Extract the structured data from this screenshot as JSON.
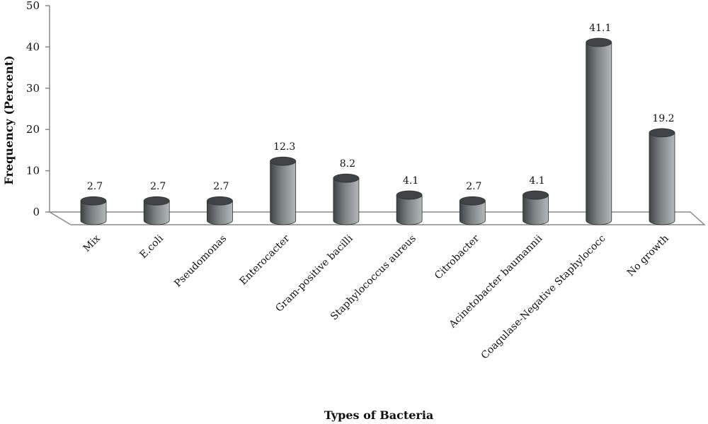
{
  "chart_data": {
    "type": "bar",
    "xlabel": "Types of Bacteria",
    "ylabel": "Frequency (Percent)",
    "ylim": [
      0,
      50
    ],
    "yticks": [
      "0",
      "10",
      "20",
      "30",
      "40",
      "50"
    ],
    "categories": [
      "Mix",
      "E.coli",
      "Pseudomonas",
      "Enterocacter",
      "Gram-positive bacilli",
      "Staphylococcus aureus",
      "Citrobacter",
      "Acinetobacter baumannii",
      "Coagulase-Negative Staphylococc",
      "No growth"
    ],
    "values": [
      2.7,
      2.7,
      2.7,
      12.3,
      8.2,
      4.1,
      2.7,
      4.1,
      41.1,
      19.2
    ],
    "value_labels": [
      "2.7",
      "2.7",
      "2.7",
      "12.3",
      "8.2",
      "4.1",
      "2.7",
      "4.1",
      "41.1",
      "19.2"
    ],
    "legend": "none",
    "grid": false,
    "bar_style": "3d-cylinder",
    "colors": {
      "bar_dark": "#3f4343",
      "bar_mid": "#7d8282",
      "bar_light": "#b4b8b8",
      "axis": "#8a8a8a",
      "floor": "#ffffff"
    }
  }
}
